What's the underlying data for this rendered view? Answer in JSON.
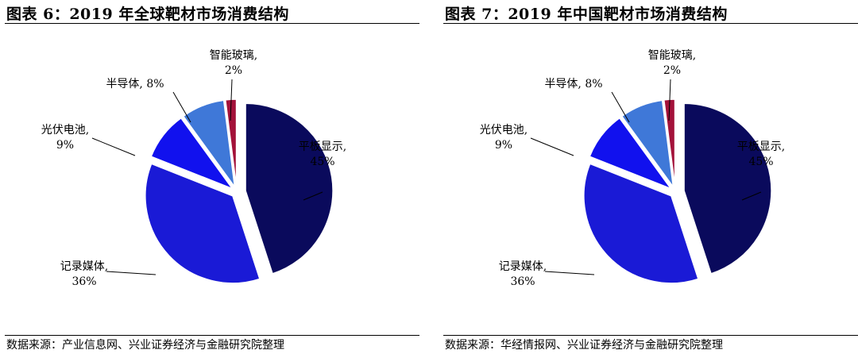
{
  "chart_data": [
    {
      "type": "pie",
      "title": "图表 6：2019 年全球靶材市场消费结构",
      "source": "数据来源：产业信息网、兴业证券经济与金融研究院整理",
      "slices": [
        {
          "name": "平板显示",
          "value": 45,
          "value_label": "45%",
          "color": "#0a0a5c"
        },
        {
          "name": "记录媒体",
          "value": 36,
          "value_label": "36%",
          "color": "#1a1ad6"
        },
        {
          "name": "光伏电池",
          "value": 9,
          "value_label": "9%",
          "color": "#1111ee"
        },
        {
          "name": "半导体",
          "value": 8,
          "value_label": "8%",
          "color": "#3f78d8"
        },
        {
          "name": "智能玻璃",
          "value": 2,
          "value_label": "2%",
          "color": "#a3123a"
        }
      ],
      "legend": "none",
      "grid": false
    },
    {
      "type": "pie",
      "title": "图表 7：2019 年中国靶材市场消费结构",
      "source": "数据来源：华经情报网、兴业证券经济与金融研究院整理",
      "slices": [
        {
          "name": "平板显示",
          "value": 45,
          "value_label": "45%",
          "color": "#0a0a5c"
        },
        {
          "name": "记录媒体",
          "value": 36,
          "value_label": "36%",
          "color": "#1a1ad6"
        },
        {
          "name": "光伏电池",
          "value": 9,
          "value_label": "9%",
          "color": "#1111ee"
        },
        {
          "name": "半导体",
          "value": 8,
          "value_label": "8%",
          "color": "#3f78d8"
        },
        {
          "name": "智能玻璃",
          "value": 2,
          "value_label": "2%",
          "color": "#a3123a"
        }
      ],
      "legend": "none",
      "grid": false
    }
  ]
}
